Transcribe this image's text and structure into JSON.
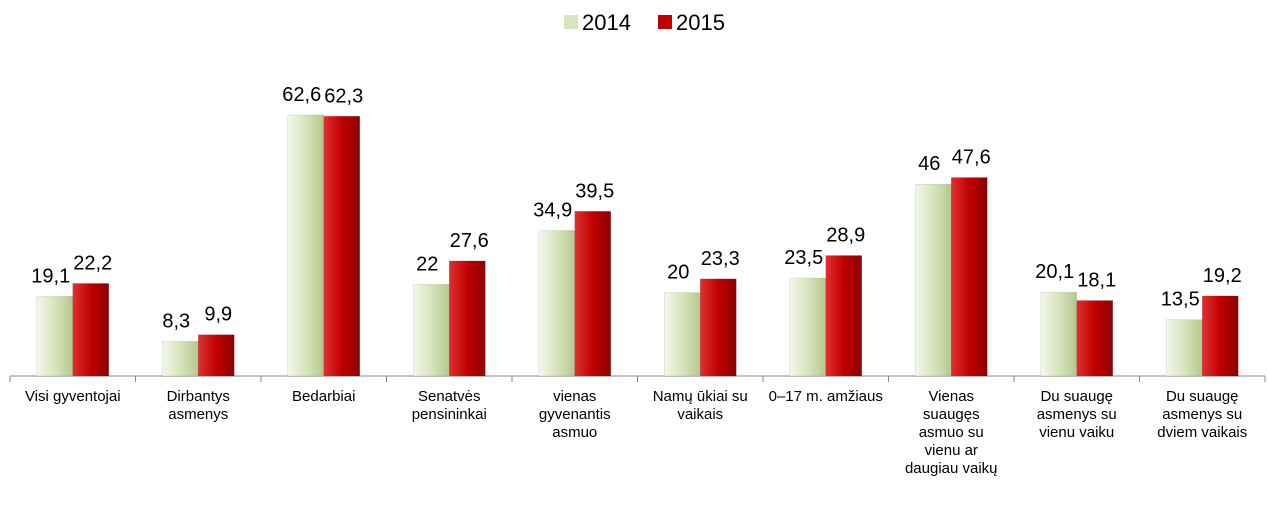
{
  "chart_data": {
    "type": "bar",
    "categories": [
      "Visi gyventojai",
      "Dirbantys asmenys",
      "Bedarbiai",
      "Senatvės pensininkai",
      "vienas gyvenantis asmuo",
      "Namų ūkiai su vaikais",
      "0–17 m. amžiaus",
      "Vienas suaugęs asmuo su vienu ar daugiau vaikų",
      "Du suaugę asmenys su vienu vaiku",
      "Du suaugę asmenys su dviem vaikais"
    ],
    "series": [
      {
        "name": "2014",
        "color": "#d7e4bd",
        "values": [
          19.1,
          8.3,
          62.6,
          22,
          34.9,
          20,
          23.5,
          46,
          20.1,
          13.5
        ],
        "value_labels": [
          "19,1",
          "8,3",
          "62,6",
          "22",
          "34,9",
          "20",
          "23,5",
          "46",
          "20,1",
          "13,5"
        ]
      },
      {
        "name": "2015",
        "color": "#c00000",
        "values": [
          22.2,
          9.9,
          62.3,
          27.6,
          39.5,
          23.3,
          28.9,
          47.6,
          18.1,
          19.2
        ],
        "value_labels": [
          "22,2",
          "9,9",
          "62,3",
          "27,6",
          "39,5",
          "23,3",
          "28,9",
          "47,6",
          "18,1",
          "19,2"
        ]
      }
    ],
    "legend": "top"
  }
}
